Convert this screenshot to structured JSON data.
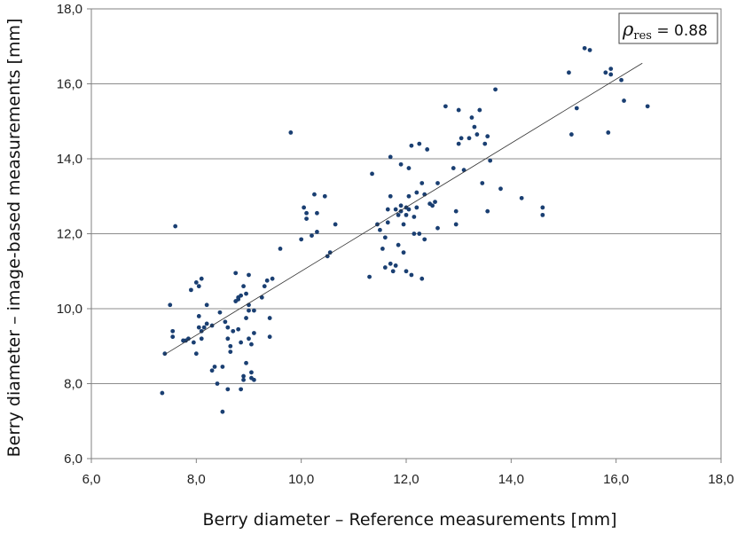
{
  "chart_data": {
    "type": "scatter",
    "xlabel": "Berry diameter – Reference measurements [mm]",
    "ylabel": "Berry diameter – image-based measurements [mm]",
    "xlim": [
      6.0,
      18.0
    ],
    "ylim": [
      6.0,
      18.0
    ],
    "x_ticks": [
      6.0,
      8.0,
      10.0,
      12.0,
      14.0,
      16.0,
      18.0
    ],
    "y_ticks": [
      6.0,
      8.0,
      10.0,
      12.0,
      14.0,
      16.0,
      18.0
    ],
    "x_tick_labels": [
      "6,0",
      "8,0",
      "10,0",
      "12,0",
      "14,0",
      "16,0",
      "18,0"
    ],
    "y_tick_labels": [
      "6,0",
      "8,0",
      "10,0",
      "12,0",
      "14,0",
      "16,0",
      "18,0"
    ],
    "grid": "horizontal",
    "point_color": "#1a3f72",
    "line_color": "#333333",
    "legend": {
      "placement": "top-right",
      "symbol": "ρ",
      "subscript": "res",
      "value_text": " = 0.88"
    },
    "trendline": {
      "x": [
        7.4,
        16.5
      ],
      "y": [
        8.78,
        16.55
      ]
    },
    "points": [
      [
        7.35,
        7.75
      ],
      [
        7.4,
        8.8
      ],
      [
        7.5,
        10.1
      ],
      [
        7.55,
        9.25
      ],
      [
        7.55,
        9.4
      ],
      [
        7.6,
        12.2
      ],
      [
        7.75,
        9.15
      ],
      [
        7.8,
        9.15
      ],
      [
        7.85,
        9.2
      ],
      [
        7.9,
        10.5
      ],
      [
        7.95,
        9.1
      ],
      [
        8.0,
        10.7
      ],
      [
        8.0,
        8.8
      ],
      [
        8.05,
        9.5
      ],
      [
        8.05,
        9.8
      ],
      [
        8.05,
        10.6
      ],
      [
        8.1,
        10.8
      ],
      [
        8.1,
        9.4
      ],
      [
        8.1,
        9.2
      ],
      [
        8.15,
        9.5
      ],
      [
        8.2,
        9.6
      ],
      [
        8.2,
        10.1
      ],
      [
        8.3,
        9.55
      ],
      [
        8.3,
        8.35
      ],
      [
        8.35,
        8.45
      ],
      [
        8.4,
        8.0
      ],
      [
        8.45,
        9.9
      ],
      [
        8.5,
        7.25
      ],
      [
        8.5,
        8.45
      ],
      [
        8.55,
        9.65
      ],
      [
        8.6,
        9.5
      ],
      [
        8.6,
        9.2
      ],
      [
        8.6,
        7.85
      ],
      [
        8.65,
        9.0
      ],
      [
        8.65,
        8.85
      ],
      [
        8.7,
        9.4
      ],
      [
        8.75,
        10.2
      ],
      [
        8.75,
        10.95
      ],
      [
        8.8,
        9.45
      ],
      [
        8.8,
        10.25
      ],
      [
        8.8,
        10.3
      ],
      [
        8.85,
        10.35
      ],
      [
        8.85,
        9.1
      ],
      [
        8.85,
        7.85
      ],
      [
        8.9,
        10.6
      ],
      [
        8.9,
        8.2
      ],
      [
        8.9,
        8.1
      ],
      [
        8.95,
        10.4
      ],
      [
        8.95,
        9.75
      ],
      [
        8.95,
        8.55
      ],
      [
        9.0,
        10.9
      ],
      [
        9.0,
        10.1
      ],
      [
        9.0,
        9.95
      ],
      [
        9.0,
        9.2
      ],
      [
        9.05,
        8.3
      ],
      [
        9.05,
        8.15
      ],
      [
        9.05,
        9.05
      ],
      [
        9.1,
        9.95
      ],
      [
        9.1,
        9.35
      ],
      [
        9.1,
        8.1
      ],
      [
        9.25,
        10.3
      ],
      [
        9.3,
        10.6
      ],
      [
        9.35,
        10.75
      ],
      [
        9.4,
        9.75
      ],
      [
        9.4,
        9.25
      ],
      [
        9.45,
        10.8
      ],
      [
        9.6,
        11.6
      ],
      [
        9.8,
        14.7
      ],
      [
        10.0,
        11.85
      ],
      [
        10.05,
        12.7
      ],
      [
        10.1,
        12.4
      ],
      [
        10.1,
        12.55
      ],
      [
        10.2,
        11.95
      ],
      [
        10.25,
        13.05
      ],
      [
        10.3,
        12.05
      ],
      [
        10.3,
        12.55
      ],
      [
        10.45,
        13.0
      ],
      [
        10.5,
        11.4
      ],
      [
        10.55,
        11.5
      ],
      [
        10.65,
        12.25
      ],
      [
        11.3,
        10.85
      ],
      [
        11.35,
        13.6
      ],
      [
        11.45,
        12.25
      ],
      [
        11.5,
        12.1
      ],
      [
        11.55,
        11.6
      ],
      [
        11.6,
        11.1
      ],
      [
        11.6,
        11.9
      ],
      [
        11.65,
        12.3
      ],
      [
        11.65,
        12.65
      ],
      [
        11.7,
        13.0
      ],
      [
        11.7,
        14.05
      ],
      [
        11.7,
        11.2
      ],
      [
        11.75,
        11.0
      ],
      [
        11.8,
        11.15
      ],
      [
        11.8,
        12.65
      ],
      [
        11.85,
        12.5
      ],
      [
        11.85,
        11.7
      ],
      [
        11.9,
        12.6
      ],
      [
        11.9,
        12.75
      ],
      [
        11.9,
        13.85
      ],
      [
        11.95,
        11.5
      ],
      [
        11.95,
        12.25
      ],
      [
        12.0,
        11.0
      ],
      [
        12.0,
        12.5
      ],
      [
        12.0,
        12.7
      ],
      [
        12.05,
        13.0
      ],
      [
        12.05,
        12.65
      ],
      [
        12.05,
        13.75
      ],
      [
        12.1,
        10.9
      ],
      [
        12.1,
        14.35
      ],
      [
        12.15,
        12.45
      ],
      [
        12.15,
        12.0
      ],
      [
        12.2,
        12.7
      ],
      [
        12.2,
        13.1
      ],
      [
        12.25,
        14.4
      ],
      [
        12.25,
        12.0
      ],
      [
        12.3,
        13.35
      ],
      [
        12.3,
        10.8
      ],
      [
        12.35,
        13.05
      ],
      [
        12.35,
        11.85
      ],
      [
        12.4,
        14.25
      ],
      [
        12.45,
        12.8
      ],
      [
        12.5,
        12.75
      ],
      [
        12.55,
        12.85
      ],
      [
        12.6,
        12.15
      ],
      [
        12.6,
        13.35
      ],
      [
        12.75,
        15.4
      ],
      [
        12.9,
        13.75
      ],
      [
        12.95,
        12.6
      ],
      [
        12.95,
        12.25
      ],
      [
        13.0,
        14.4
      ],
      [
        13.0,
        15.3
      ],
      [
        13.05,
        14.55
      ],
      [
        13.1,
        13.7
      ],
      [
        13.2,
        14.55
      ],
      [
        13.25,
        15.1
      ],
      [
        13.3,
        14.85
      ],
      [
        13.35,
        14.65
      ],
      [
        13.4,
        15.3
      ],
      [
        13.45,
        13.35
      ],
      [
        13.5,
        14.4
      ],
      [
        13.55,
        12.6
      ],
      [
        13.55,
        14.6
      ],
      [
        13.6,
        13.95
      ],
      [
        13.7,
        15.85
      ],
      [
        13.8,
        13.2
      ],
      [
        14.2,
        12.95
      ],
      [
        14.6,
        12.7
      ],
      [
        14.6,
        12.5
      ],
      [
        15.1,
        16.3
      ],
      [
        15.15,
        14.65
      ],
      [
        15.25,
        15.35
      ],
      [
        15.4,
        16.95
      ],
      [
        15.5,
        16.9
      ],
      [
        15.8,
        16.3
      ],
      [
        15.85,
        14.7
      ],
      [
        15.9,
        16.25
      ],
      [
        15.9,
        16.4
      ],
      [
        16.1,
        16.1
      ],
      [
        16.15,
        15.55
      ],
      [
        16.6,
        15.4
      ]
    ]
  }
}
